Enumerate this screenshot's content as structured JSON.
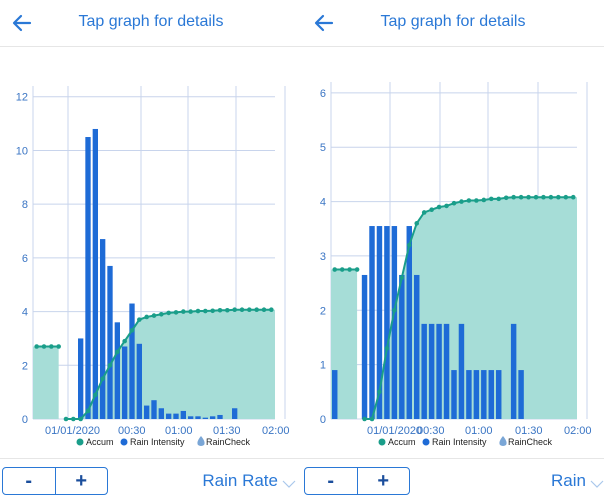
{
  "colors": {
    "accent": "#2a78d6",
    "bar": "#1e6bd6",
    "accum_line": "#1a9e8a",
    "accum_fill": "#a6ddd7",
    "grid": "#c8d4ec"
  },
  "icons": {
    "back": "arrow-left-icon",
    "dropdown": "chevron-down-icon",
    "logo": "raindrop-icon"
  },
  "panels": [
    {
      "header_title": "Tap graph for details",
      "stepper": {
        "minus": "-",
        "plus": "+"
      },
      "selector_label": "Rain Rate",
      "legend": {
        "accum": "Accum",
        "intensity": "Rain Intensity",
        "brand": "RainCheck"
      }
    },
    {
      "header_title": "Tap graph for details",
      "stepper": {
        "minus": "-",
        "plus": "+"
      },
      "selector_label": "Rain",
      "legend": {
        "accum": "Accum",
        "intensity": "Rain Intensity",
        "brand": "RainCheck"
      }
    }
  ],
  "chart_data": [
    {
      "type": "bar",
      "x_ticks": [
        "01/01/2020",
        "00:30",
        "01:00",
        "01:30",
        "02:00"
      ],
      "y_ticks": [
        "0",
        "2",
        "4",
        "6",
        "8",
        "10",
        "12"
      ],
      "ylim": [
        0,
        12.4
      ],
      "grid": true,
      "legend_position": "bottom-right",
      "intensity_values": [
        0,
        0,
        0,
        0,
        0,
        0,
        3.0,
        10.5,
        10.8,
        6.7,
        5.7,
        3.6,
        2.7,
        4.3,
        2.8,
        0.5,
        0.7,
        0.4,
        0.2,
        0.2,
        0.3,
        0.1,
        0.1,
        0.05,
        0.1,
        0.15,
        0,
        0.4,
        0,
        0,
        0,
        0,
        0
      ],
      "accum_values": [
        2.7,
        2.7,
        2.7,
        2.7,
        0,
        0,
        0,
        0.3,
        0.9,
        1.5,
        2.0,
        2.5,
        2.9,
        3.3,
        3.7,
        3.8,
        3.85,
        3.9,
        3.95,
        3.97,
        4.0,
        4.0,
        4.02,
        4.02,
        4.03,
        4.05,
        4.05,
        4.07,
        4.07,
        4.07,
        4.07,
        4.07,
        4.07
      ]
    },
    {
      "type": "bar",
      "x_ticks": [
        "01/01/2020",
        "00:30",
        "01:00",
        "01:30",
        "02:00"
      ],
      "y_ticks": [
        "0",
        "1",
        "2",
        "3",
        "4",
        "5",
        "6"
      ],
      "ylim": [
        0,
        6.2
      ],
      "grid": true,
      "legend_position": "bottom-right",
      "intensity_values": [
        0.9,
        0,
        0,
        0,
        2.65,
        3.55,
        3.55,
        3.55,
        3.55,
        2.65,
        3.55,
        2.65,
        1.75,
        1.75,
        1.75,
        1.75,
        0.9,
        1.75,
        0.9,
        0.9,
        0.9,
        0.9,
        0.9,
        0,
        1.75,
        0.9,
        0,
        0,
        0,
        0,
        0,
        0,
        0
      ],
      "accum_values": [
        2.75,
        2.75,
        2.75,
        2.75,
        0,
        0,
        0.5,
        1.3,
        2.0,
        2.6,
        3.2,
        3.6,
        3.8,
        3.85,
        3.9,
        3.92,
        3.97,
        4.0,
        4.02,
        4.02,
        4.03,
        4.05,
        4.05,
        4.07,
        4.08,
        4.08,
        4.08,
        4.08,
        4.08,
        4.08,
        4.08,
        4.08,
        4.08
      ]
    }
  ]
}
